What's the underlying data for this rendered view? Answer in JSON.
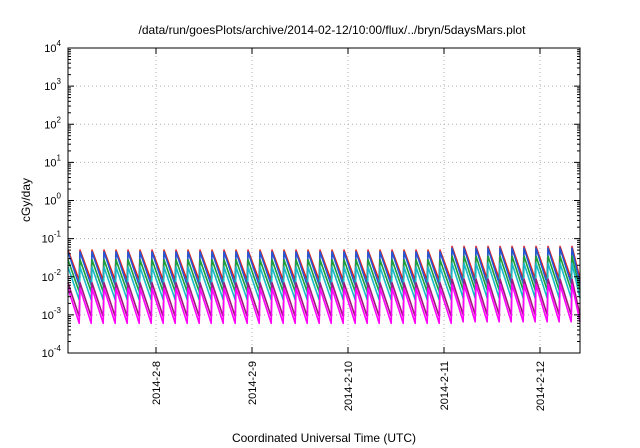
{
  "chart_data": {
    "type": "line",
    "title": "/data/run/goesPlots/archive/2014-02-12/10:00/flux/../bryn/5daysMars.plot",
    "xlabel": "Coordinated Universal Time (UTC)",
    "ylabel": "cGy/day",
    "y_scale": "log",
    "ylim": [
      0.0001,
      10000
    ],
    "xlim": [
      "2014-02-07T02:00",
      "2014-02-12T10:00"
    ],
    "y_ticks": [
      {
        "base": "10",
        "exp": "4"
      },
      {
        "base": "10",
        "exp": "3"
      },
      {
        "base": "10",
        "exp": "2"
      },
      {
        "base": "10",
        "exp": "1"
      },
      {
        "base": "10",
        "exp": "0"
      },
      {
        "base": "10",
        "exp": "-1"
      },
      {
        "base": "10",
        "exp": "-2"
      },
      {
        "base": "10",
        "exp": "-3"
      },
      {
        "base": "10",
        "exp": "-4"
      }
    ],
    "x_ticks": [
      "2014-2-8",
      "2014-2-9",
      "2014-2-10",
      "2014-2-11",
      "2014-2-12"
    ],
    "grid": true,
    "sawtooth_period_hours": 3,
    "series": [
      {
        "color": "#e8231e",
        "peak": 0.05,
        "trough": 0.008
      },
      {
        "color": "#1f57d6",
        "peak": 0.045,
        "trough": 0.006
      },
      {
        "color": "#1d9e3a",
        "peak": 0.028,
        "trough": 0.004
      },
      {
        "color": "#19b8c8",
        "peak": 0.018,
        "trough": 0.0025
      },
      {
        "color": "#a2167e",
        "peak": 0.007,
        "trough": 0.0009
      },
      {
        "color": "#ff00ff",
        "peak": 0.005,
        "trough": 0.0006
      }
    ]
  }
}
